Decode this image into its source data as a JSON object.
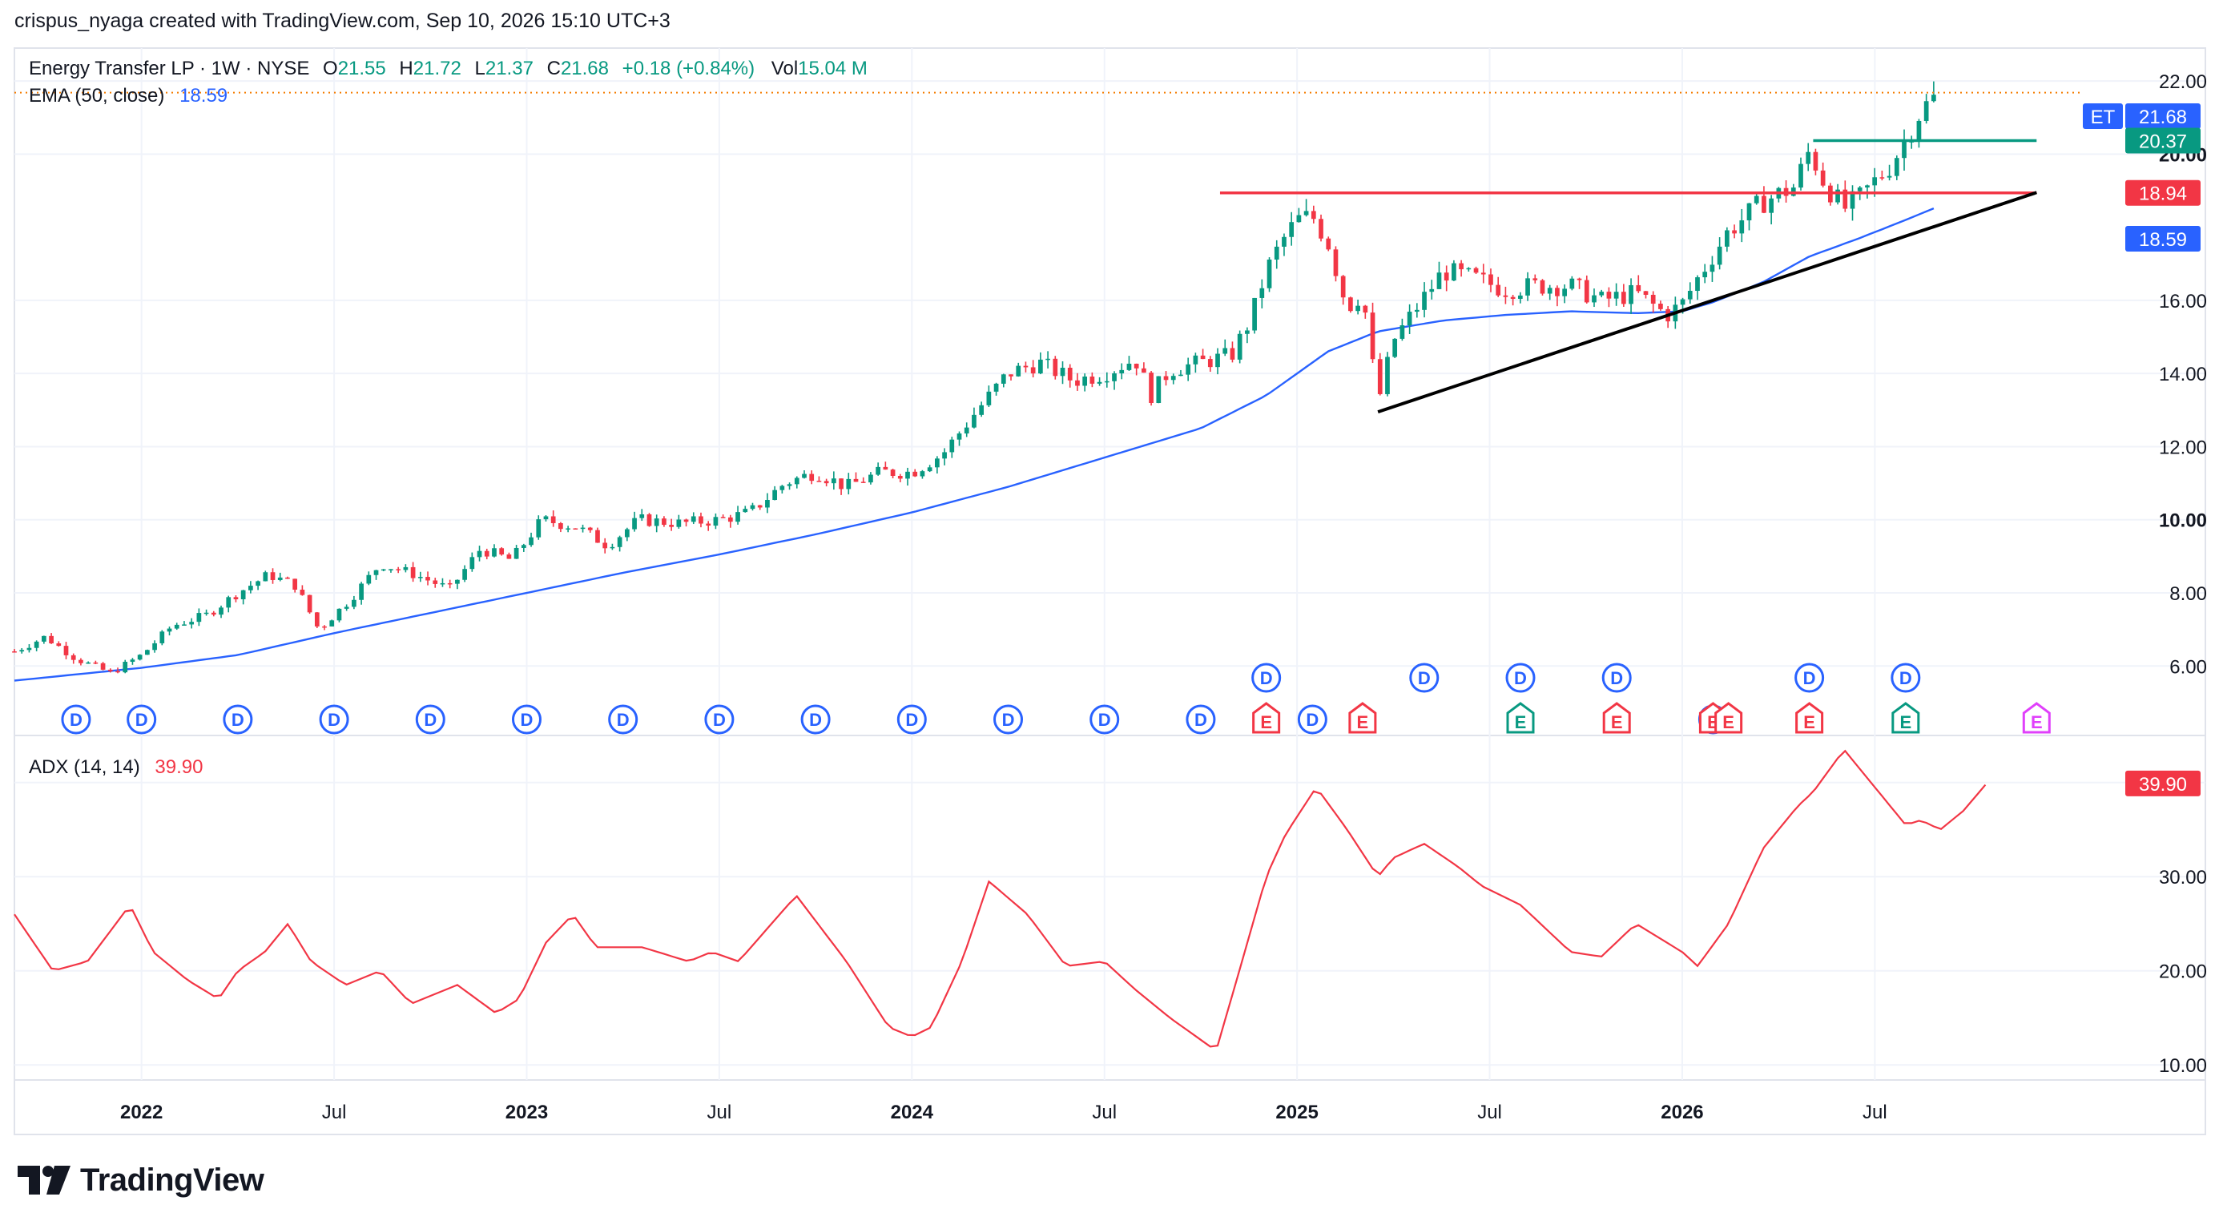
{
  "attribution": "crispus_nyaga created with TradingView.com, Sep 10, 2026 15:10 UTC+3",
  "brand": "TradingView",
  "colors": {
    "up": "#089981",
    "down": "#f23645",
    "ema": "#2962ff",
    "adx": "#f23645",
    "resistance": "#f23645",
    "support": "#089981",
    "trend": "#000000",
    "grid": "#f0f3fa"
  },
  "legend": {
    "symbol_title": "Energy Transfer LP · 1W · NYSE",
    "o_label": "O",
    "o_value": "21.55",
    "h_label": "H",
    "h_value": "21.72",
    "l_label": "L",
    "l_value": "21.37",
    "c_label": "C",
    "c_value": "21.68",
    "change": "+0.18 (+0.84%)",
    "vol_label": "Vol",
    "vol_value": "15.04 M",
    "ema_label": "EMA (50, close)",
    "ema_value": "18.59",
    "adx_label": "ADX (14, 14)",
    "adx_value": "39.90"
  },
  "price_badges": [
    {
      "text": "21.68",
      "value": 21.68,
      "color": "#2962ff",
      "prefix": "ET"
    },
    {
      "text": "20.37",
      "value": 20.37,
      "color": "#089981"
    },
    {
      "text": "18.94",
      "value": 18.94,
      "color": "#f23645"
    },
    {
      "text": "18.59",
      "value": 18.59,
      "color": "#2962ff"
    }
  ],
  "adx_badge": {
    "text": "39.90",
    "value": 39.9,
    "color": "#f23645"
  },
  "chart_data": {
    "type": "candlestick",
    "x_tick_labels": [
      {
        "label": "2022",
        "bold": true,
        "t": 2022.0
      },
      {
        "label": "Jul",
        "bold": false,
        "t": 2022.5
      },
      {
        "label": "2023",
        "bold": true,
        "t": 2023.0
      },
      {
        "label": "Jul",
        "bold": false,
        "t": 2023.5
      },
      {
        "label": "2024",
        "bold": true,
        "t": 2024.0
      },
      {
        "label": "Jul",
        "bold": false,
        "t": 2024.5
      },
      {
        "label": "2025",
        "bold": true,
        "t": 2025.0
      },
      {
        "label": "Jul",
        "bold": false,
        "t": 2025.5
      },
      {
        "label": "2026",
        "bold": true,
        "t": 2026.0
      },
      {
        "label": "Jul",
        "bold": false,
        "t": 2026.5
      }
    ],
    "x_range": [
      2021.67,
      2027.04
    ],
    "price_axis": {
      "ticks": [
        "6.00",
        "8.00",
        "10.00",
        "12.00",
        "14.00",
        "16.00",
        "20.00",
        "22.00"
      ],
      "bold": [
        "10.00",
        "20.00"
      ],
      "range": [
        4.1,
        22.9
      ]
    },
    "adx_axis": {
      "ticks": [
        "10.00",
        "20.00",
        "30.00"
      ],
      "range": [
        8.4,
        45.0
      ]
    },
    "price_anchors": [
      [
        2021.67,
        6.4
      ],
      [
        2021.75,
        6.8
      ],
      [
        2021.83,
        6.2
      ],
      [
        2021.92,
        5.8
      ],
      [
        2022.0,
        6.3
      ],
      [
        2022.08,
        7.1
      ],
      [
        2022.17,
        7.4
      ],
      [
        2022.25,
        8.0
      ],
      [
        2022.33,
        8.5
      ],
      [
        2022.4,
        8.2
      ],
      [
        2022.46,
        7.0
      ],
      [
        2022.54,
        7.8
      ],
      [
        2022.62,
        8.8
      ],
      [
        2022.71,
        8.5
      ],
      [
        2022.8,
        8.1
      ],
      [
        2022.88,
        9.2
      ],
      [
        2022.96,
        8.9
      ],
      [
        2023.04,
        10.0
      ],
      [
        2023.13,
        9.8
      ],
      [
        2023.21,
        9.3
      ],
      [
        2023.29,
        10.0
      ],
      [
        2023.4,
        9.9
      ],
      [
        2023.5,
        10.0
      ],
      [
        2023.58,
        10.2
      ],
      [
        2023.67,
        11.0
      ],
      [
        2023.75,
        11.3
      ],
      [
        2023.83,
        10.9
      ],
      [
        2023.92,
        11.3
      ],
      [
        2024.0,
        11.3
      ],
      [
        2024.08,
        11.8
      ],
      [
        2024.17,
        13.0
      ],
      [
        2024.25,
        14.0
      ],
      [
        2024.33,
        14.3
      ],
      [
        2024.42,
        13.8
      ],
      [
        2024.5,
        14.0
      ],
      [
        2024.58,
        14.4
      ],
      [
        2024.62,
        13.4
      ],
      [
        2024.67,
        14.1
      ],
      [
        2024.75,
        14.3
      ],
      [
        2024.83,
        14.5
      ],
      [
        2024.88,
        15.5
      ],
      [
        2024.92,
        16.8
      ],
      [
        2024.96,
        17.6
      ],
      [
        2025.0,
        18.2
      ],
      [
        2025.04,
        18.3
      ],
      [
        2025.08,
        17.6
      ],
      [
        2025.13,
        15.8
      ],
      [
        2025.17,
        16.2
      ],
      [
        2025.21,
        13.2
      ],
      [
        2025.25,
        14.9
      ],
      [
        2025.31,
        15.8
      ],
      [
        2025.38,
        16.8
      ],
      [
        2025.46,
        16.6
      ],
      [
        2025.54,
        16.3
      ],
      [
        2025.62,
        16.4
      ],
      [
        2025.71,
        16.4
      ],
      [
        2025.79,
        16.0
      ],
      [
        2025.88,
        16.2
      ],
      [
        2025.96,
        15.6
      ],
      [
        2026.0,
        15.9
      ],
      [
        2026.04,
        16.6
      ],
      [
        2026.12,
        17.9
      ],
      [
        2026.21,
        18.7
      ],
      [
        2026.29,
        19.1
      ],
      [
        2026.33,
        20.1
      ],
      [
        2026.37,
        19.2
      ],
      [
        2026.42,
        18.5
      ],
      [
        2026.46,
        18.8
      ],
      [
        2026.54,
        19.7
      ],
      [
        2026.58,
        20.4
      ],
      [
        2026.62,
        21.2
      ],
      [
        2026.67,
        21.68
      ]
    ],
    "ema_anchors": [
      [
        2021.67,
        5.6
      ],
      [
        2022.0,
        5.95
      ],
      [
        2022.25,
        6.3
      ],
      [
        2022.5,
        6.9
      ],
      [
        2022.75,
        7.45
      ],
      [
        2023.0,
        8.0
      ],
      [
        2023.25,
        8.55
      ],
      [
        2023.5,
        9.05
      ],
      [
        2023.75,
        9.6
      ],
      [
        2024.0,
        10.2
      ],
      [
        2024.25,
        10.9
      ],
      [
        2024.5,
        11.7
      ],
      [
        2024.75,
        12.5
      ],
      [
        2024.92,
        13.4
      ],
      [
        2025.0,
        14.0
      ],
      [
        2025.08,
        14.6
      ],
      [
        2025.21,
        15.15
      ],
      [
        2025.38,
        15.45
      ],
      [
        2025.54,
        15.6
      ],
      [
        2025.71,
        15.7
      ],
      [
        2025.88,
        15.65
      ],
      [
        2026.0,
        15.7
      ],
      [
        2026.08,
        15.95
      ],
      [
        2026.21,
        16.5
      ],
      [
        2026.33,
        17.2
      ],
      [
        2026.46,
        17.7
      ],
      [
        2026.58,
        18.2
      ],
      [
        2026.67,
        18.59
      ]
    ],
    "adx_anchors": [
      [
        2021.67,
        26
      ],
      [
        2021.77,
        20
      ],
      [
        2021.86,
        21
      ],
      [
        2021.97,
        27
      ],
      [
        2022.03,
        22
      ],
      [
        2022.12,
        19
      ],
      [
        2022.2,
        17
      ],
      [
        2022.25,
        20
      ],
      [
        2022.32,
        22
      ],
      [
        2022.38,
        25
      ],
      [
        2022.44,
        21
      ],
      [
        2022.53,
        18.5
      ],
      [
        2022.62,
        20
      ],
      [
        2022.7,
        16.5
      ],
      [
        2022.82,
        18.5
      ],
      [
        2022.92,
        15.5
      ],
      [
        2022.98,
        17
      ],
      [
        2023.05,
        23
      ],
      [
        2023.12,
        26
      ],
      [
        2023.18,
        22.5
      ],
      [
        2023.3,
        22.5
      ],
      [
        2023.42,
        21
      ],
      [
        2023.48,
        22
      ],
      [
        2023.55,
        21
      ],
      [
        2023.7,
        28
      ],
      [
        2023.83,
        21
      ],
      [
        2023.94,
        14
      ],
      [
        2024.0,
        13
      ],
      [
        2024.05,
        14
      ],
      [
        2024.13,
        21
      ],
      [
        2024.2,
        29.5
      ],
      [
        2024.3,
        26
      ],
      [
        2024.4,
        20.5
      ],
      [
        2024.5,
        21
      ],
      [
        2024.58,
        18
      ],
      [
        2024.67,
        15
      ],
      [
        2024.79,
        11.5
      ],
      [
        2024.85,
        20
      ],
      [
        2024.92,
        30
      ],
      [
        2024.97,
        34.5
      ],
      [
        2025.05,
        39.5
      ],
      [
        2025.13,
        35
      ],
      [
        2025.21,
        30
      ],
      [
        2025.25,
        32
      ],
      [
        2025.33,
        33.5
      ],
      [
        2025.42,
        31
      ],
      [
        2025.48,
        29
      ],
      [
        2025.58,
        27
      ],
      [
        2025.71,
        22
      ],
      [
        2025.79,
        21.5
      ],
      [
        2025.88,
        25
      ],
      [
        2025.96,
        23
      ],
      [
        2026.0,
        22
      ],
      [
        2026.04,
        20.5
      ],
      [
        2026.12,
        25
      ],
      [
        2026.21,
        33
      ],
      [
        2026.3,
        37.5
      ],
      [
        2026.34,
        39
      ],
      [
        2026.42,
        43.5
      ],
      [
        2026.47,
        41
      ],
      [
        2026.58,
        35.5
      ],
      [
        2026.62,
        36
      ],
      [
        2026.67,
        35
      ],
      [
        2026.73,
        37
      ],
      [
        2026.79,
        39.9
      ]
    ],
    "annotations": {
      "resistance_line": {
        "price": 18.94,
        "from_t": 2024.8,
        "to_t": 2026.92
      },
      "support_line": {
        "price": 20.37,
        "from_t": 2026.34,
        "to_t": 2026.92
      },
      "trend_line": {
        "from": [
          2025.21,
          12.95
        ],
        "to": [
          2026.92,
          18.95
        ]
      },
      "dividend_markers_row1": [
        2024.92,
        2025.33,
        2025.58,
        2025.83,
        2026.33,
        2026.58
      ],
      "dividend_markers_row2": [
        2021.83,
        2022.0,
        2022.25,
        2022.5,
        2022.75,
        2023.0,
        2023.25,
        2023.5,
        2023.75,
        2024.0,
        2024.25,
        2024.5,
        2024.75,
        2025.04,
        2026.08
      ],
      "earnings_markers": [
        {
          "t": 2024.92,
          "color": "#f23645"
        },
        {
          "t": 2025.17,
          "color": "#f23645"
        },
        {
          "t": 2025.58,
          "color": "#089981"
        },
        {
          "t": 2025.83,
          "color": "#f23645"
        },
        {
          "t": 2026.08,
          "color": "#f23645"
        },
        {
          "t": 2026.12,
          "color": "#f23645"
        },
        {
          "t": 2026.33,
          "color": "#f23645"
        },
        {
          "t": 2026.58,
          "color": "#089981"
        },
        {
          "t": 2026.92,
          "color": "#e040fb"
        }
      ],
      "marker_d_text": "D",
      "marker_e_text": "E"
    }
  }
}
